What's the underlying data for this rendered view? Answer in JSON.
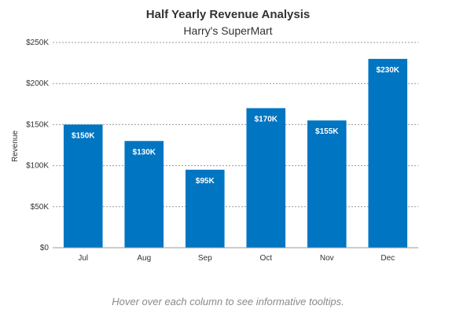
{
  "chart_data": {
    "type": "bar",
    "title": "Half Yearly Revenue Analysis",
    "subtitle": "Harry's SuperMart",
    "xlabel": "",
    "ylabel": "Revenue",
    "categories": [
      "Jul",
      "Aug",
      "Sep",
      "Oct",
      "Nov",
      "Dec"
    ],
    "values": [
      150000,
      130000,
      95000,
      170000,
      155000,
      230000
    ],
    "data_labels": [
      "$150K",
      "$130K",
      "$95K",
      "$170K",
      "$155K",
      "$230K"
    ],
    "ylim": [
      0,
      250000
    ],
    "y_ticks": [
      0,
      50000,
      100000,
      150000,
      200000,
      250000
    ],
    "y_tick_labels": [
      "$0",
      "$50K",
      "$100K",
      "$150K",
      "$200K",
      "$250K"
    ],
    "grid": true,
    "bar_color": "#0075c2",
    "grid_color": "#9a9a9a"
  },
  "caption": "Hover over each column to see informative tooltips."
}
